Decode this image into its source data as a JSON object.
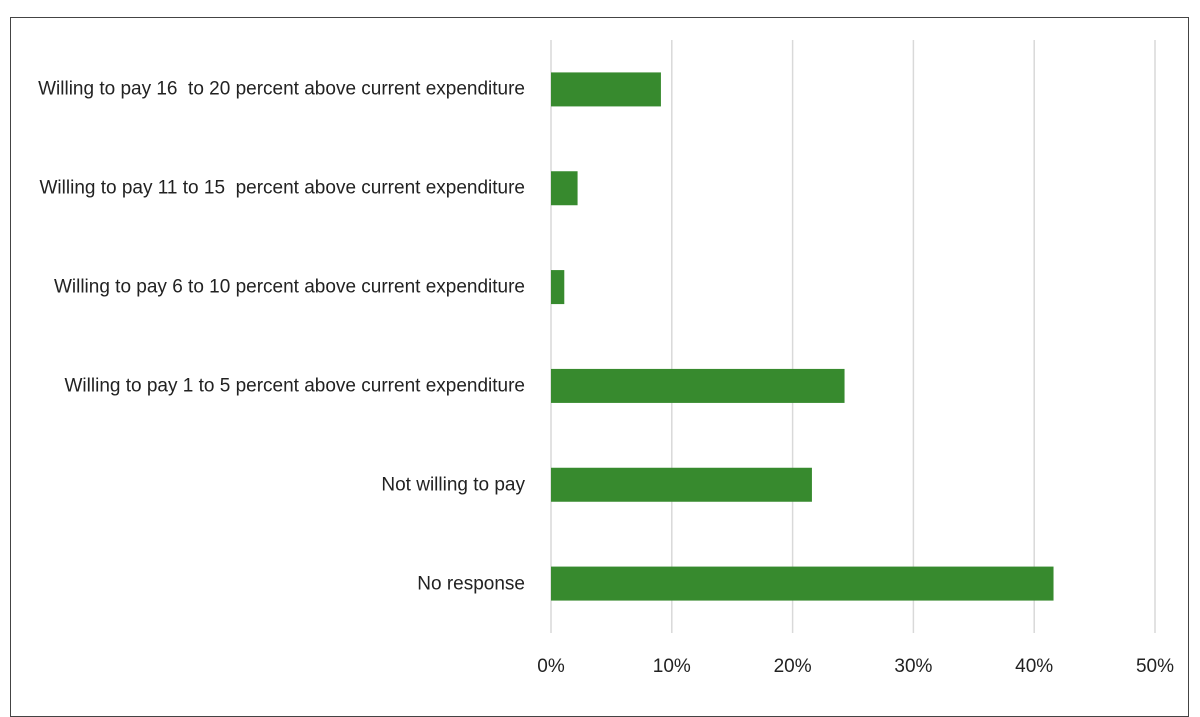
{
  "chart_data": {
    "type": "bar",
    "orientation": "horizontal",
    "categories": [
      "Willing to pay 16  to 20 percent above current expenditure",
      "Willing to pay 11 to 15  percent above current expenditure",
      "Willing to pay 6 to 10 percent above current expenditure",
      "Willing to pay 1 to 5 percent above current expenditure",
      "Not willing to pay",
      "No response"
    ],
    "values": [
      9.1,
      2.2,
      1.1,
      24.3,
      21.6,
      41.6
    ],
    "color": "#378a2e",
    "xlim": [
      0,
      50
    ],
    "xticks": [
      {
        "value": 0,
        "label": "0%"
      },
      {
        "value": 10,
        "label": "10%"
      },
      {
        "value": 20,
        "label": "20%"
      },
      {
        "value": 30,
        "label": "30%"
      },
      {
        "value": 40,
        "label": "40%"
      },
      {
        "value": 50,
        "label": "50%"
      }
    ],
    "grid": true
  }
}
